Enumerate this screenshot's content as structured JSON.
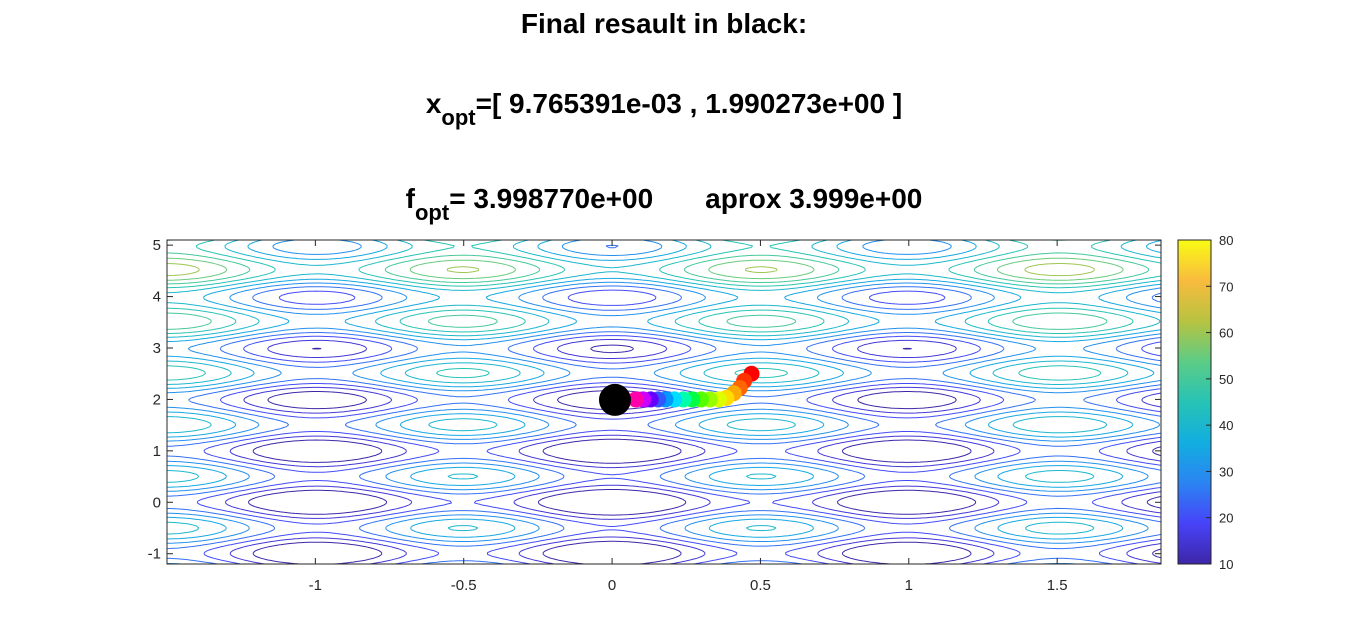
{
  "figure": {
    "title_line1": "Final resault in black:",
    "title_line2_var": "x",
    "title_line2_sub": "opt",
    "title_line2_value": "=[ 9.765391e-03 , 1.990273e+00 ]",
    "title_line3_var": "f",
    "title_line3_sub": "opt",
    "title_line3_value": "= 3.998770e+00",
    "title_line3_approx": "aprox 3.999e+00"
  },
  "chart_data": {
    "type": "scatter",
    "subtype": "contour",
    "function": "Rastrigin-like: 20 + x^2 + y^2 - 10(cos 2πx + cos 2πy)",
    "xlim": [
      -1.5,
      1.85
    ],
    "ylim": [
      -1.2,
      5.1
    ],
    "xticks": [
      -1,
      -0.5,
      0,
      0.5,
      1,
      1.5
    ],
    "xtick_labels": [
      "-1",
      "-0.5",
      "0",
      "0.5",
      "1",
      "1.5"
    ],
    "yticks": [
      -1,
      0,
      1,
      2,
      3,
      4,
      5
    ],
    "ytick_labels": [
      "-1",
      "0",
      "1",
      "2",
      "3",
      "4",
      "5"
    ],
    "contour_levels": [
      10,
      15,
      20,
      25,
      30,
      35,
      40,
      45,
      50,
      55,
      60,
      65,
      70,
      75
    ],
    "colorbar": {
      "range": [
        10,
        80
      ],
      "ticks": [
        10,
        20,
        30,
        40,
        50,
        60,
        70,
        80
      ],
      "tick_labels": [
        "10",
        "20",
        "30",
        "40",
        "50",
        "60",
        "70",
        "80"
      ],
      "colormap": [
        "#3e26a8",
        "#4743f8",
        "#2b84f2",
        "#12aee0",
        "#27c3b5",
        "#5ccc86",
        "#b8c340",
        "#f9bb3e",
        "#f9fb15"
      ]
    },
    "iterations": {
      "name": "search path",
      "x": [
        0.47,
        0.445,
        0.43,
        0.41,
        0.385,
        0.36,
        0.33,
        0.3,
        0.27,
        0.24,
        0.21,
        0.18,
        0.155,
        0.13,
        0.105,
        0.08
      ],
      "y": [
        2.5,
        2.36,
        2.22,
        2.12,
        2.03,
        2.0,
        2.0,
        2.0,
        2.0,
        2.0,
        2.0,
        2.0,
        2.0,
        2.0,
        2.0,
        2.0
      ],
      "colors": [
        "#ff0000",
        "#ff3300",
        "#ff6600",
        "#ffaa00",
        "#ffdd00",
        "#ddff00",
        "#99ff00",
        "#55ff00",
        "#00ff44",
        "#00ffaa",
        "#00ddff",
        "#0099ff",
        "#3355ff",
        "#6600ff",
        "#cc00ff",
        "#ff00aa"
      ]
    },
    "final_point": {
      "name": "final result",
      "x": 0.009765391,
      "y": 1.990273,
      "color": "#000000"
    }
  }
}
